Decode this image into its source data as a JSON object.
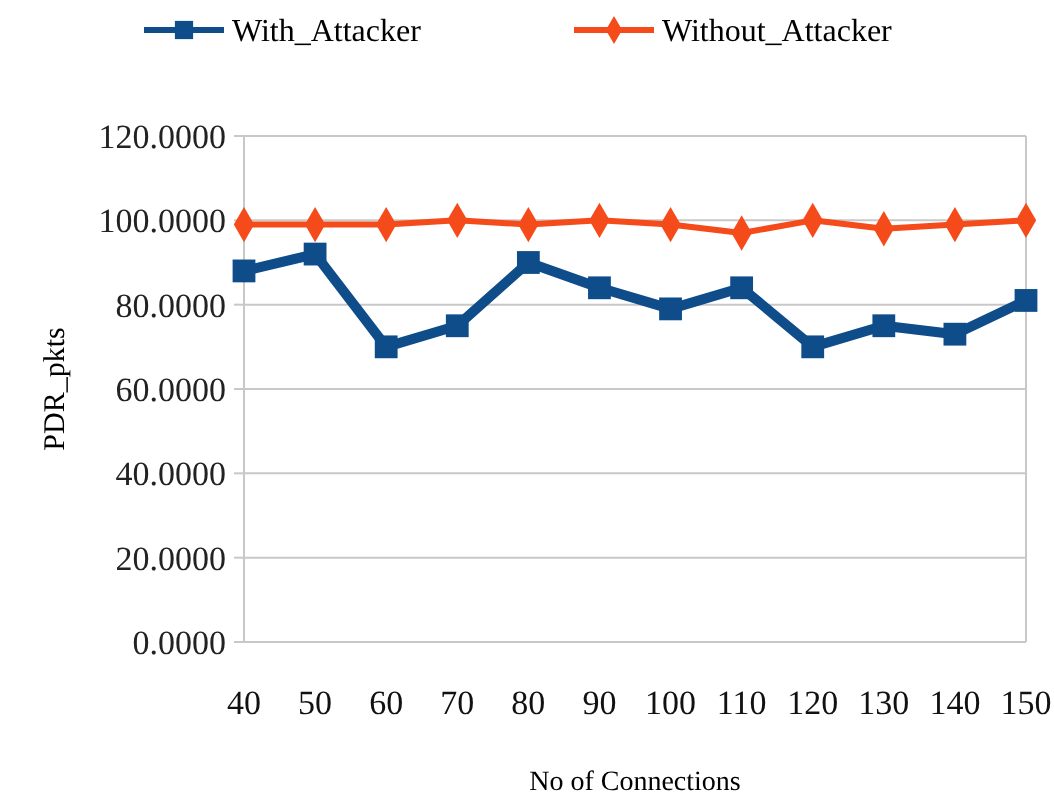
{
  "chart_data": {
    "type": "line",
    "xlabel": "No of Connections",
    "ylabel": "PDR_pkts",
    "categories": [
      "40",
      "50",
      "60",
      "70",
      "80",
      "90",
      "100",
      "110",
      "120",
      "130",
      "140",
      "150"
    ],
    "series": [
      {
        "name": "With_Attacker",
        "color": "#0f4c8a",
        "marker": "square",
        "values": [
          88,
          92,
          70,
          75,
          90,
          84,
          79,
          84,
          70,
          75,
          73,
          81
        ]
      },
      {
        "name": "Without_Attacker",
        "color": "#f54b1a",
        "marker": "diamond",
        "values": [
          99,
          99,
          99,
          100,
          99,
          100,
          99,
          97,
          100,
          98,
          99,
          100
        ]
      }
    ],
    "ylim": [
      0,
      120
    ],
    "yticks": [
      {
        "value": 0,
        "label": "0.0000"
      },
      {
        "value": 20,
        "label": "20.0000"
      },
      {
        "value": 40,
        "label": "40.0000"
      },
      {
        "value": 60,
        "label": "60.0000"
      },
      {
        "value": 80,
        "label": "80.0000"
      },
      {
        "value": 100,
        "label": "100.0000"
      },
      {
        "value": 120,
        "label": "120.0000"
      }
    ],
    "grid": "y",
    "legend": "top"
  }
}
